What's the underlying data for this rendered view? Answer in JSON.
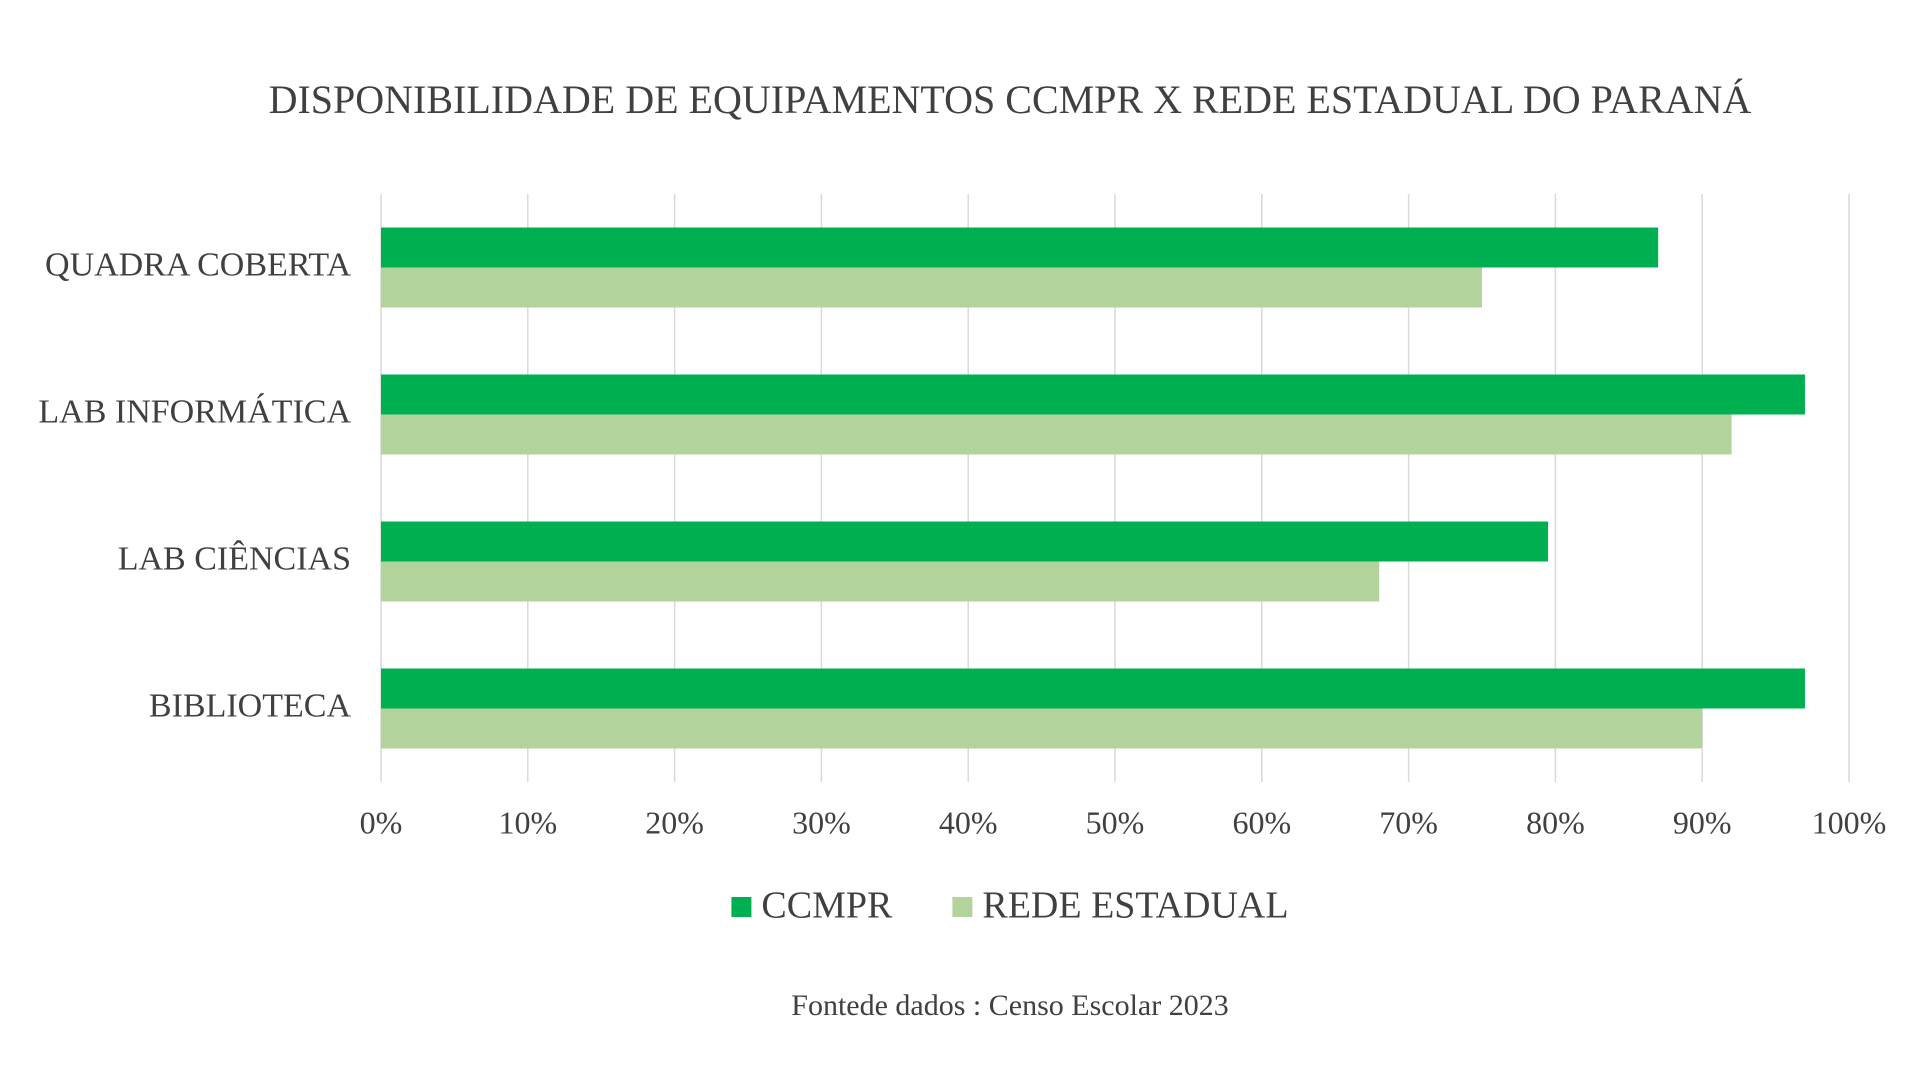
{
  "chart_data": {
    "type": "barh",
    "title": "DISPONIBILIDADE DE EQUIPAMENTOS CCMPR X REDE ESTADUAL DO PARANÁ",
    "categories": [
      "QUADRA COBERTA",
      "LAB INFORMÁTICA",
      "LAB CIÊNCIAS",
      "BIBLIOTECA"
    ],
    "series": [
      {
        "name": "CCMPR",
        "color": "#00b050",
        "values": [
          87,
          97,
          79.5,
          97
        ]
      },
      {
        "name": "REDE ESTADUAL",
        "color": "#b3d39c",
        "values": [
          75,
          92,
          68,
          90
        ]
      }
    ],
    "xlim": [
      0,
      100
    ],
    "xticks": [
      {
        "value": 0,
        "label": "0%"
      },
      {
        "value": 10,
        "label": "10%"
      },
      {
        "value": 20,
        "label": "20%"
      },
      {
        "value": 30,
        "label": "30%"
      },
      {
        "value": 40,
        "label": "40%"
      },
      {
        "value": 50,
        "label": "50%"
      },
      {
        "value": 60,
        "label": "60%"
      },
      {
        "value": 70,
        "label": "70%"
      },
      {
        "value": 80,
        "label": "80%"
      },
      {
        "value": 90,
        "label": "90%"
      },
      {
        "value": 100,
        "label": "100%"
      }
    ],
    "grid": true,
    "legend": "bottom",
    "note": "Fontede dados : Censo Escolar 2023"
  }
}
